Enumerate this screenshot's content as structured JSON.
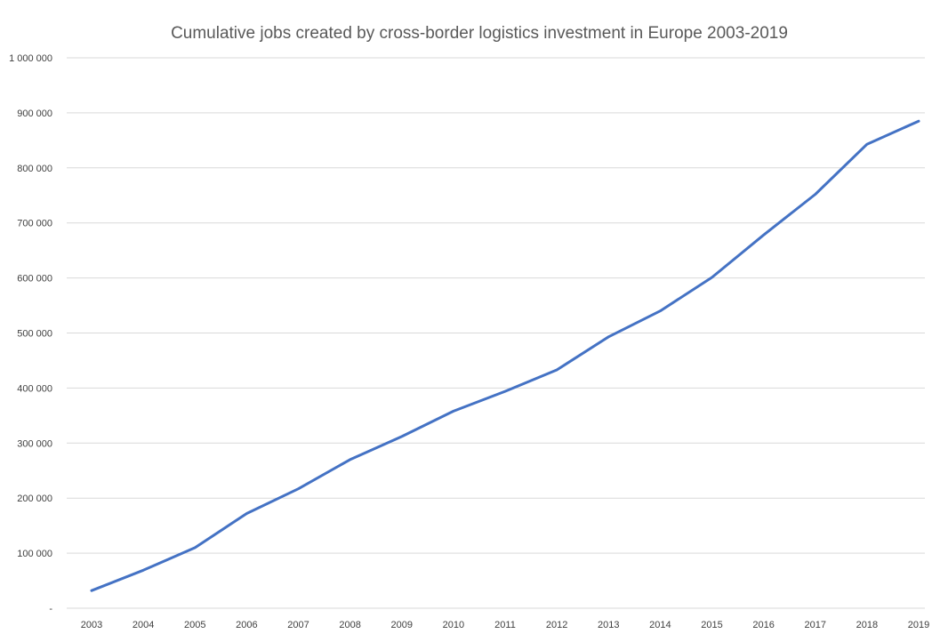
{
  "chart_data": {
    "type": "line",
    "title": "Cumulative jobs created by cross-border logistics investment in Europe 2003-2019",
    "xlabel": "",
    "ylabel": "",
    "categories": [
      "2003",
      "2004",
      "2005",
      "2006",
      "2007",
      "2008",
      "2009",
      "2010",
      "2011",
      "2012",
      "2013",
      "2014",
      "2015",
      "2016",
      "2017",
      "2018",
      "2019"
    ],
    "series": [
      {
        "values": [
          32000,
          69000,
          110000,
          172000,
          217000,
          270000,
          312000,
          358000,
          394000,
          433000,
          493000,
          540000,
          601000,
          678000,
          752000,
          843000,
          885000
        ]
      }
    ],
    "ylim": [
      0,
      1000000
    ],
    "yticks": [
      0,
      100000,
      200000,
      300000,
      400000,
      500000,
      600000,
      700000,
      800000,
      900000,
      1000000
    ],
    "ytick_labels": [
      "-",
      "100 000",
      "200 000",
      "300 000",
      "400 000",
      "500 000",
      "600 000",
      "700 000",
      "800 000",
      "900 000",
      "1 000 000"
    ],
    "grid": true,
    "legend": "none"
  },
  "colors": {
    "series": "#4472c4",
    "gridline": "#d9d9d9",
    "title": "#595959",
    "tick_label": "#404040"
  }
}
